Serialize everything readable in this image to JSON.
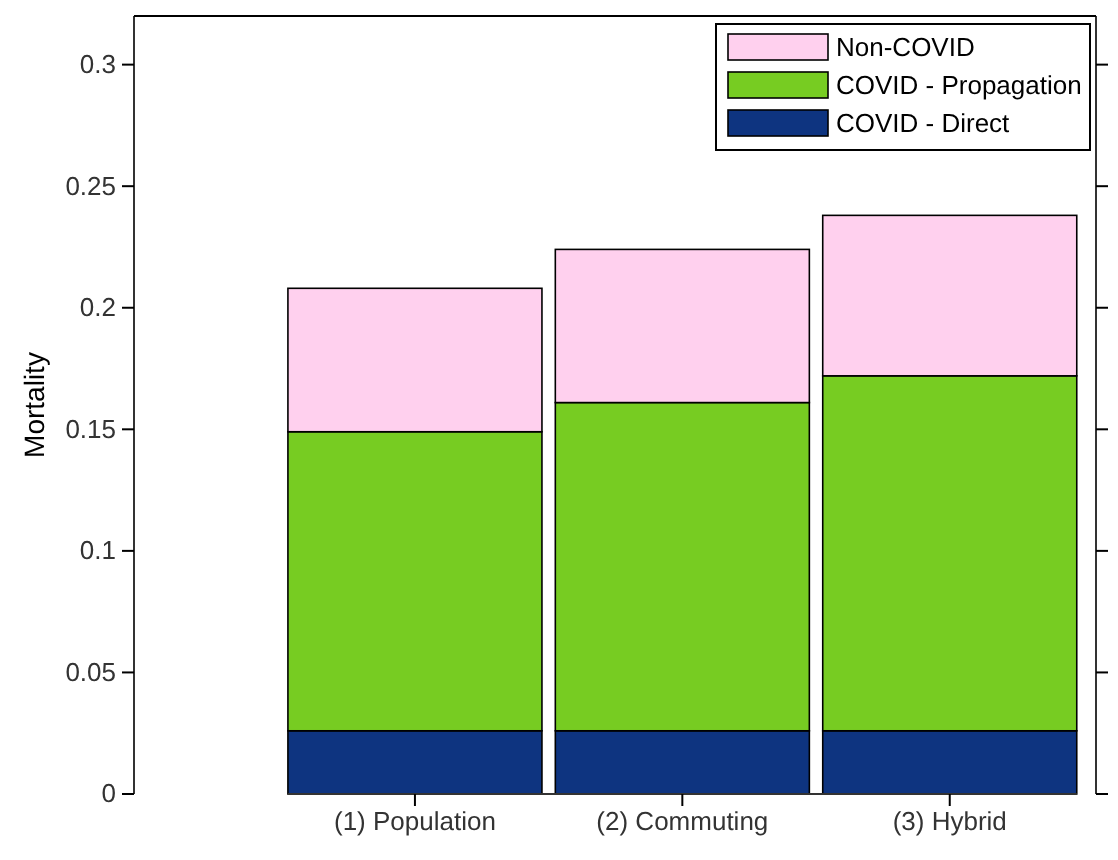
{
  "chart_data": {
    "type": "bar",
    "stacked": true,
    "ylabel": "Mortality",
    "categories": [
      "(1) Population",
      "(2) Commuting",
      "(3) Hybrid"
    ],
    "series": [
      {
        "name": "COVID - Direct",
        "color": "#0e3480",
        "values": [
          0.026,
          0.026,
          0.026
        ]
      },
      {
        "name": "COVID - Propagation",
        "color": "#77cc22",
        "values": [
          0.123,
          0.135,
          0.146
        ]
      },
      {
        "name": "Non-COVID",
        "color": "#ffd0ee",
        "values": [
          0.059,
          0.063,
          0.066
        ]
      }
    ],
    "ylim": [
      0,
      0.32
    ],
    "yticks": [
      0,
      0.05,
      0.1,
      0.15,
      0.2,
      0.25,
      0.3
    ],
    "legend": "top right",
    "grid": false
  }
}
